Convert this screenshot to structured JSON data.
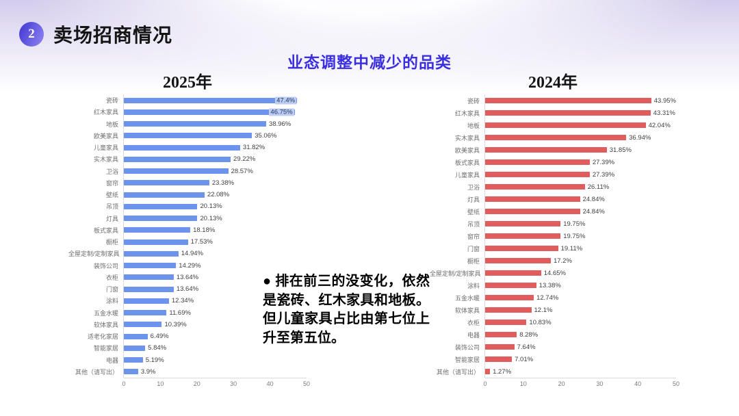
{
  "header": {
    "badge": "2",
    "title": "卖场招商情况",
    "subtitle": "业态调整中减少的品类"
  },
  "annotation": {
    "text": "● 排在前三的没变化，依然是瓷砖、红木家具和地板。但儿童家具占比由第七位上升至第五位。"
  },
  "colors": {
    "bar_2025": "#6D94EC",
    "bar_2024": "#E15C5C",
    "subtitle_blue": "#3B2FE0",
    "axis_line": "#D9D9D9"
  },
  "chart_data": [
    {
      "type": "bar",
      "orientation": "horizontal",
      "title": "2025年",
      "bar_color": "#6D94EC",
      "xlim": [
        0,
        50
      ],
      "x_ticks": [
        0,
        10,
        20,
        30,
        40,
        50
      ],
      "grid": false,
      "categories": [
        "瓷砖",
        "红木家具",
        "地板",
        "欧美家具",
        "儿童家具",
        "实木家具",
        "卫浴",
        "窗帘",
        "壁纸",
        "吊顶",
        "灯具",
        "板式家具",
        "橱柜",
        "全屋定制/定制家具",
        "装饰公司",
        "衣柜",
        "门窗",
        "涂料",
        "五金水暖",
        "软体家具",
        "适老化家居",
        "智能家居",
        "电器",
        "其他（请写出）"
      ],
      "values": [
        47.4,
        46.75,
        38.96,
        35.06,
        31.82,
        29.22,
        28.57,
        23.38,
        22.08,
        20.13,
        20.13,
        18.18,
        17.53,
        14.94,
        14.29,
        13.64,
        13.64,
        12.34,
        11.69,
        10.39,
        6.49,
        5.84,
        5.19,
        3.9
      ],
      "labels": [
        "47.4%",
        "46.75%",
        "38.96%",
        "35.06%",
        "31.82%",
        "29.22%",
        "28.57%",
        "23.38%",
        "22.08%",
        "20.13%",
        "20.13%",
        "18.18%",
        "17.53%",
        "14.94%",
        "14.29%",
        "13.64%",
        "13.64%",
        "12.34%",
        "11.69%",
        "10.39%",
        "6.49%",
        "5.84%",
        "5.19%",
        "3.9%"
      ]
    },
    {
      "type": "bar",
      "orientation": "horizontal",
      "title": "2024年",
      "bar_color": "#E15C5C",
      "xlim": [
        0,
        50
      ],
      "x_ticks": [
        0,
        10,
        20,
        30,
        40,
        50
      ],
      "grid": false,
      "categories": [
        "瓷砖",
        "红木家具",
        "地板",
        "实木家具",
        "欧美家具",
        "板式家具",
        "儿童家具",
        "卫浴",
        "灯具",
        "壁纸",
        "吊顶",
        "窗帘",
        "门窗",
        "橱柜",
        "全屋定制/定制家具",
        "涂料",
        "五金水暖",
        "软体家具",
        "衣柜",
        "电器",
        "装饰公司",
        "智能家居",
        "其他（请写出）"
      ],
      "values": [
        43.95,
        43.31,
        42.04,
        36.94,
        31.85,
        27.39,
        27.39,
        26.11,
        24.84,
        24.84,
        19.75,
        19.75,
        19.11,
        17.2,
        14.65,
        13.38,
        12.74,
        12.1,
        10.83,
        8.28,
        7.64,
        7.01,
        1.27
      ],
      "labels": [
        "43.95%",
        "43.31%",
        "42.04%",
        "36.94%",
        "31.85%",
        "27.39%",
        "27.39%",
        "26.11%",
        "24.84%",
        "24.84%",
        "19.75%",
        "19.75%",
        "19.11%",
        "17.2%",
        "14.65%",
        "13.38%",
        "12.74%",
        "12.1%",
        "10.83%",
        "8.28%",
        "7.64%",
        "7.01%",
        "1.27%"
      ]
    }
  ]
}
